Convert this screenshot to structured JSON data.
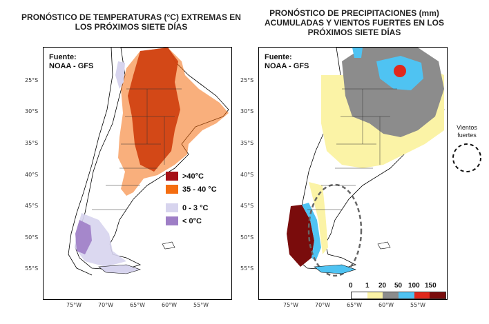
{
  "left_panel": {
    "title": "PRONÓSTICO DE TEMPERATURAS (°C) EXTREMAS EN LOS PRÓXIMOS SIETE DÍAS",
    "source_label": "Fuente:",
    "source_name": "NOAA - GFS",
    "legend": [
      {
        "label": ">40°C",
        "color": "#a50f15"
      },
      {
        "label": "35 - 40 °C",
        "color": "#f46d10"
      },
      {
        "label": "0 - 3 °C",
        "color": "#d7d4ee"
      },
      {
        "label": "< 0°C",
        "color": "#9e7ec6"
      }
    ]
  },
  "right_panel": {
    "title": "PRONÓSTICO DE PRECIPITACIONES (mm) ACUMULADAS Y VIENTOS FUERTES EN LOS PRÓXIMOS SIETE DÍAS",
    "source_label": "Fuente:",
    "source_name": "NOAA - GFS",
    "colorbar_labels": [
      "0",
      "1",
      "20",
      "50",
      "100",
      "150"
    ],
    "colorbar_colors": [
      "#ffffff",
      "#fbf3a6",
      "#8c8c8c",
      "#4fc3f2",
      "#e0281c",
      "#7a0c0c"
    ]
  },
  "winds_legend": {
    "label_line1": "Vientos",
    "label_line2": "fuertes"
  },
  "axes": {
    "lat_labels": [
      "25°S",
      "30°S",
      "35°S",
      "40°S",
      "45°S",
      "50°S",
      "55°S"
    ],
    "lon_labels": [
      "75°W",
      "70°W",
      "65°W",
      "60°W",
      "55°W"
    ]
  },
  "colors": {
    "extreme_heat": "#a50f15",
    "heat": "#f46d10",
    "cool": "#d7d4ee",
    "cold": "#9e7ec6",
    "precip_light": "#fbf3a6",
    "precip_mid": "#8c8c8c",
    "precip_high": "#4fc3f2",
    "precip_very_high": "#e0281c",
    "precip_extreme": "#7a0c0c"
  }
}
